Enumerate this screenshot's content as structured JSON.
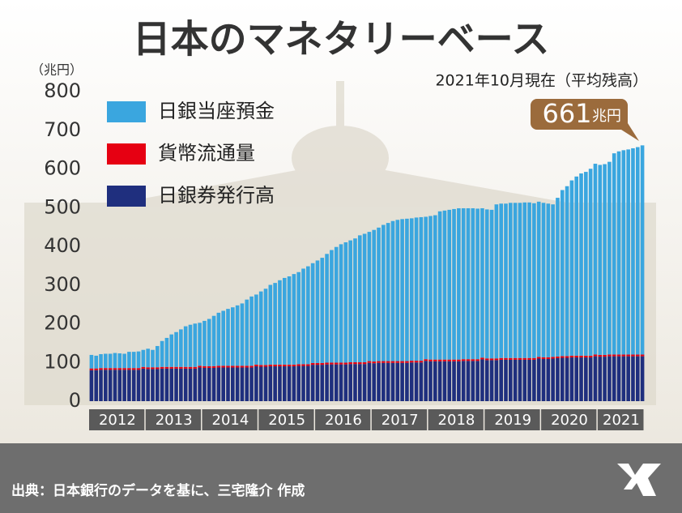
{
  "chart_data": {
    "type": "stacked_bar",
    "title": "日本のマネタリーベース",
    "subtitle": "2021年10月現在（平均残高）",
    "y_unit_label": "（兆円）",
    "source": "出典：日本銀行のデータを基に、三宅隆介 作成",
    "total_label": {
      "value": 661,
      "unit": "兆円"
    },
    "categories": [
      "2012",
      null,
      null,
      null,
      null,
      null,
      null,
      null,
      null,
      null,
      null,
      null,
      "2013",
      null,
      null,
      null,
      null,
      null,
      null,
      null,
      null,
      null,
      null,
      null,
      "2014",
      null,
      null,
      null,
      null,
      null,
      null,
      null,
      null,
      null,
      null,
      null,
      "2015",
      null,
      null,
      null,
      null,
      null,
      null,
      null,
      null,
      null,
      null,
      null,
      "2016",
      null,
      null,
      null,
      null,
      null,
      null,
      null,
      null,
      null,
      null,
      null,
      "2017",
      null,
      null,
      null,
      null,
      null,
      null,
      null,
      null,
      null,
      null,
      null,
      "2018",
      null,
      null,
      null,
      null,
      null,
      null,
      null,
      null,
      null,
      null,
      null,
      "2019",
      null,
      null,
      null,
      null,
      null,
      null,
      null,
      null,
      null,
      null,
      null,
      "2020",
      null,
      null,
      null,
      null,
      null,
      null,
      null,
      null,
      null,
      null,
      null,
      "2021",
      null,
      null,
      null,
      null,
      null,
      null,
      null,
      null,
      null
    ],
    "series": [
      {
        "name": "日銀券発行高",
        "color": "#1f2f7e",
        "values": [
          80,
          80,
          81,
          81,
          81,
          81,
          81,
          81,
          81,
          81,
          81,
          84,
          83,
          83,
          83,
          84,
          84,
          84,
          84,
          84,
          84,
          84,
          84,
          87,
          86,
          86,
          86,
          87,
          87,
          87,
          87,
          87,
          87,
          87,
          87,
          90,
          89,
          89,
          90,
          90,
          90,
          90,
          90,
          90,
          91,
          91,
          91,
          94,
          94,
          94,
          95,
          95,
          95,
          95,
          95,
          96,
          96,
          96,
          96,
          99,
          98,
          99,
          99,
          99,
          99,
          99,
          99,
          99,
          100,
          100,
          100,
          104,
          103,
          103,
          103,
          103,
          103,
          103,
          103,
          104,
          104,
          104,
          104,
          108,
          106,
          106,
          106,
          107,
          107,
          107,
          107,
          107,
          107,
          107,
          107,
          110,
          109,
          109,
          110,
          111,
          112,
          112,
          113,
          113,
          113,
          113,
          113,
          116,
          115,
          115,
          116,
          116,
          116,
          116,
          116,
          116,
          116,
          116
        ]
      },
      {
        "name": "貨幣流通量",
        "color": "#e60012",
        "values": [
          4.5,
          4.5,
          4.5,
          4.5,
          4.5,
          4.5,
          4.5,
          4.5,
          4.5,
          4.5,
          4.5,
          4.5,
          4.5,
          4.5,
          4.5,
          4.5,
          4.5,
          4.5,
          4.5,
          4.5,
          4.5,
          4.5,
          4.5,
          4.5,
          4.5,
          4.5,
          4.5,
          4.5,
          4.5,
          4.5,
          4.5,
          4.5,
          4.5,
          4.5,
          4.5,
          4.5,
          4.5,
          4.5,
          4.5,
          4.5,
          4.5,
          4.5,
          4.5,
          4.5,
          4.5,
          4.5,
          4.5,
          4.5,
          4.5,
          4.5,
          4.5,
          4.5,
          4.5,
          4.5,
          4.5,
          4.5,
          4.5,
          4.5,
          4.5,
          4.5,
          4.5,
          4.5,
          4.5,
          4.5,
          4.5,
          4.5,
          4.5,
          4.5,
          4.5,
          4.5,
          4.5,
          4.5,
          4.5,
          4.5,
          4.5,
          4.5,
          4.5,
          4.5,
          4.5,
          4.5,
          4.5,
          4.5,
          4.5,
          4.5,
          4.5,
          4.5,
          4.5,
          4.5,
          4.5,
          4.5,
          4.5,
          4.5,
          4.5,
          4.5,
          4.5,
          4.5,
          4.5,
          4.5,
          4.5,
          4.5,
          4.5,
          4.5,
          4.5,
          4.5,
          4.5,
          4.5,
          4.5,
          4.5,
          4.5,
          4.5,
          4.5,
          4.5,
          4.5,
          4.5,
          4.5,
          4.5,
          4.5,
          4.5
        ]
      },
      {
        "name": "日銀当座預金",
        "color": "#3aa6df",
        "values": [
          35,
          33,
          36,
          37,
          37,
          39,
          38,
          37,
          42,
          42,
          43,
          44,
          48,
          45,
          55,
          67,
          75,
          84,
          90,
          97,
          105,
          109,
          112,
          111,
          117,
          122,
          130,
          137,
          142,
          147,
          151,
          156,
          161,
          171,
          179,
          181,
          190,
          197,
          206,
          211,
          218,
          224,
          228,
          234,
          238,
          247,
          253,
          258,
          265,
          272,
          281,
          291,
          299,
          306,
          311,
          315,
          320,
          328,
          332,
          334,
          340,
          345,
          352,
          357,
          362,
          365,
          367,
          368,
          368,
          370,
          371,
          368,
          371,
          373,
          383,
          385,
          387,
          389,
          391,
          390,
          390,
          390,
          389,
          386,
          385,
          384,
          398,
          399,
          399,
          401,
          401,
          401,
          402,
          402,
          400,
          401,
          399,
          397,
          394,
          410,
          429,
          439,
          453,
          463,
          471,
          475,
          483,
          493,
          491,
          493,
          498,
          520,
          525,
          528,
          530,
          533,
          536,
          540.5
        ]
      }
    ],
    "ylim": [
      0,
      800
    ],
    "yticks": [
      0,
      100,
      200,
      300,
      400,
      500,
      600,
      700,
      800
    ],
    "grid": false
  }
}
